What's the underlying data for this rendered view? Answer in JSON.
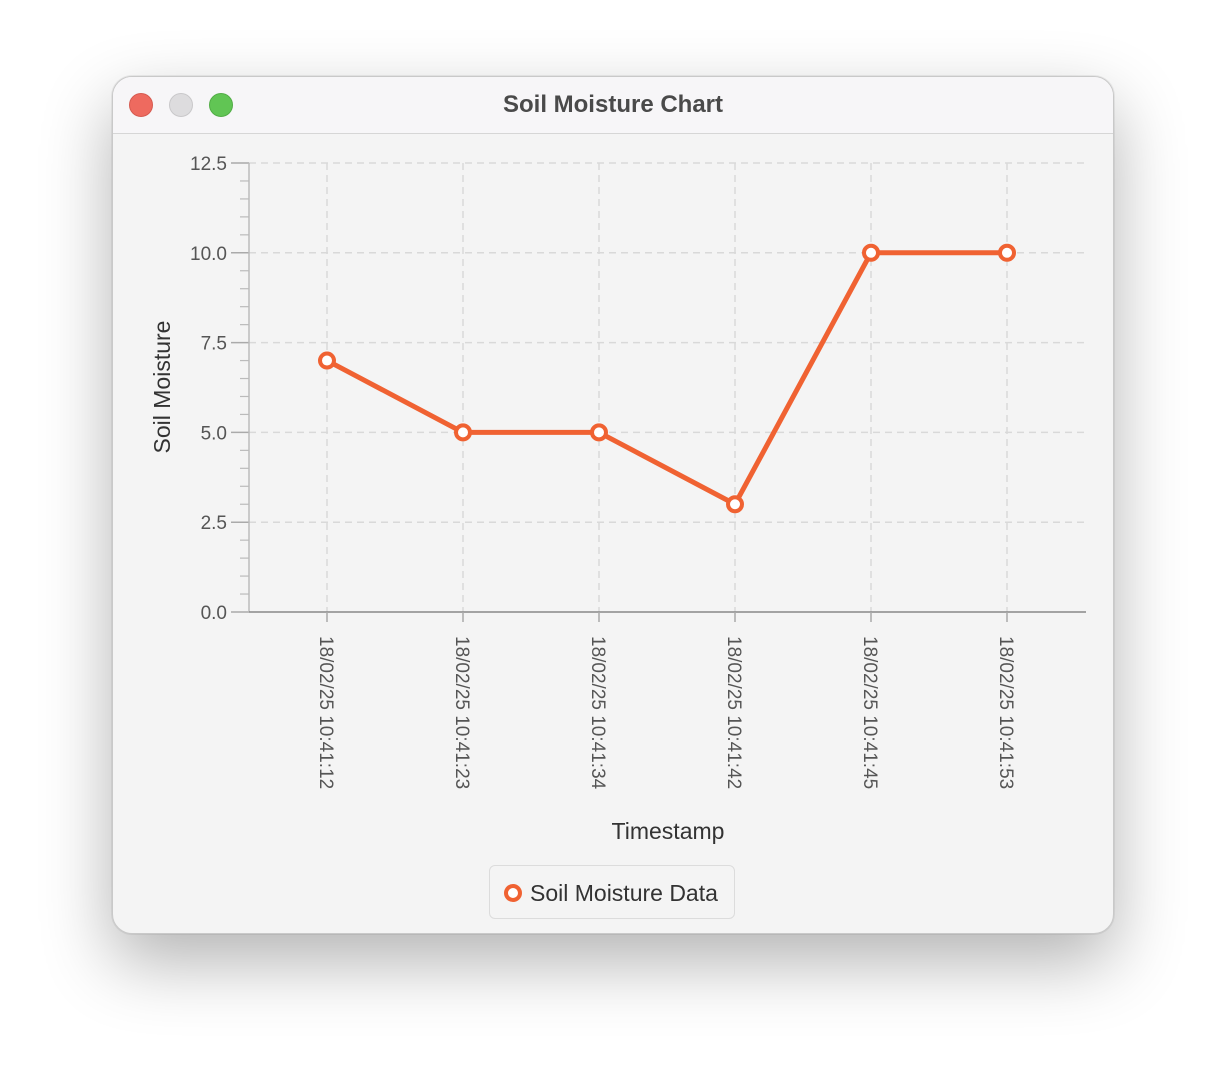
{
  "window": {
    "title": "Soil Moisture Chart"
  },
  "colors": {
    "series": "#f06232",
    "grid": "#d9d9d9",
    "axis": "#888888",
    "text": "#333333"
  },
  "chart_data": {
    "type": "line",
    "xlabel": "Timestamp",
    "ylabel": "Soil Moisture",
    "categories": [
      "18/02/25 10:41:12",
      "18/02/25 10:41:23",
      "18/02/25 10:41:34",
      "18/02/25 10:41:42",
      "18/02/25 10:41:45",
      "18/02/25 10:41:53"
    ],
    "series": [
      {
        "name": "Soil Moisture Data",
        "values": [
          7,
          5,
          5,
          3,
          10,
          10
        ]
      }
    ],
    "ylim": [
      0,
      12.5
    ],
    "y_ticks": [
      "0.0",
      "2.5",
      "5.0",
      "7.5",
      "10.0",
      "12.5"
    ],
    "grid": true,
    "legend": "bottom"
  }
}
